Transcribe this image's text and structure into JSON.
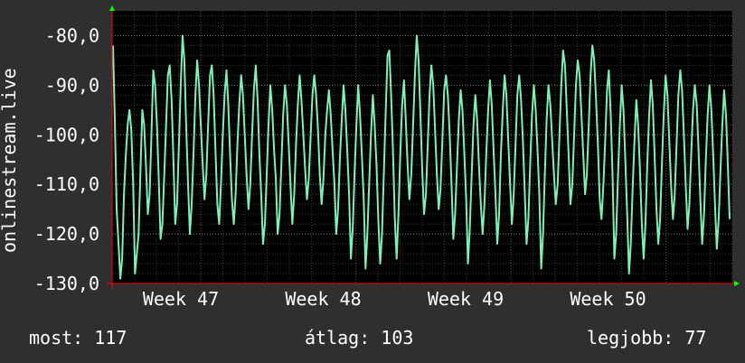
{
  "chart_data": {
    "type": "line",
    "title": "",
    "xlabel": "",
    "ylabel": "onlinestream.live",
    "x_ticks": [
      "Week 47",
      "Week 48",
      "Week 49",
      "Week 50"
    ],
    "y_ticks": [
      "-80,0",
      "-90,0",
      "-100,0",
      "-110,0",
      "-120,0",
      "-130,0"
    ],
    "ylim": [
      -130,
      -75
    ],
    "grid": true,
    "line_color": "#7ef0b8",
    "series": [
      {
        "values": [
          -82,
          -97,
          -115,
          -122,
          -129,
          -125,
          -112,
          -104,
          -98,
          -95,
          -99,
          -110,
          -128,
          -124,
          -120,
          -107,
          -95,
          -98,
          -106,
          -116,
          -112,
          -100,
          -87,
          -90,
          -98,
          -109,
          -121,
          -118,
          -108,
          -98,
          -88,
          -86,
          -93,
          -105,
          -118,
          -114,
          -102,
          -90,
          -80,
          -85,
          -98,
          -110,
          -120,
          -114,
          -104,
          -92,
          -85,
          -90,
          -98,
          -106,
          -113,
          -108,
          -98,
          -88,
          -86,
          -92,
          -103,
          -114,
          -118,
          -110,
          -100,
          -92,
          -87,
          -94,
          -104,
          -113,
          -118,
          -112,
          -102,
          -94,
          -88,
          -92,
          -100,
          -108,
          -115,
          -110,
          -100,
          -91,
          -86,
          -93,
          -104,
          -112,
          -122,
          -118,
          -108,
          -98,
          -90,
          -95,
          -103,
          -109,
          -120,
          -116,
          -106,
          -96,
          -90,
          -94,
          -102,
          -110,
          -118,
          -112,
          -102,
          -94,
          -88,
          -93,
          -100,
          -107,
          -113,
          -109,
          -100,
          -92,
          -88,
          -92,
          -99,
          -108,
          -114,
          -109,
          -100,
          -95,
          -91,
          -96,
          -103,
          -110,
          -120,
          -115,
          -105,
          -97,
          -90,
          -95,
          -103,
          -112,
          -125,
          -119,
          -108,
          -98,
          -90,
          -96,
          -104,
          -113,
          -127,
          -120,
          -110,
          -100,
          -92,
          -98,
          -106,
          -117,
          -126,
          -120,
          -108,
          -96,
          -84,
          -83,
          -92,
          -103,
          -117,
          -125,
          -116,
          -104,
          -94,
          -89,
          -97,
          -106,
          -113,
          -108,
          -98,
          -88,
          -80,
          -85,
          -96,
          -107,
          -116,
          -112,
          -102,
          -92,
          -86,
          -90,
          -99,
          -108,
          -115,
          -111,
          -101,
          -91,
          -88,
          -92,
          -100,
          -110,
          -121,
          -116,
          -106,
          -97,
          -91,
          -95,
          -104,
          -113,
          -126,
          -119,
          -108,
          -98,
          -92,
          -97,
          -106,
          -114,
          -120,
          -114,
          -104,
          -95,
          -89,
          -94,
          -103,
          -112,
          -122,
          -116,
          -104,
          -95,
          -88,
          -92,
          -101,
          -110,
          -118,
          -112,
          -102,
          -92,
          -88,
          -93,
          -101,
          -111,
          -122,
          -117,
          -106,
          -96,
          -90,
          -95,
          -103,
          -112,
          -127,
          -120,
          -108,
          -97,
          -90,
          -94,
          -101,
          -108,
          -114,
          -110,
          -100,
          -90,
          -83,
          -86,
          -95,
          -104,
          -114,
          -110,
          -100,
          -90,
          -85,
          -88,
          -96,
          -104,
          -112,
          -108,
          -98,
          -88,
          -82,
          -85,
          -93,
          -102,
          -113,
          -117,
          -110,
          -101,
          -91,
          -87,
          -96,
          -108,
          -125,
          -120,
          -108,
          -98,
          -90,
          -95,
          -105,
          -116,
          -128,
          -122,
          -111,
          -101,
          -93,
          -98,
          -107,
          -118,
          -125,
          -118,
          -106,
          -96,
          -89,
          -94,
          -104,
          -115,
          -122,
          -117,
          -106,
          -96,
          -88,
          -92,
          -101,
          -110,
          -117,
          -112,
          -102,
          -92,
          -87,
          -91,
          -100,
          -110,
          -119,
          -114,
          -104,
          -95,
          -90,
          -94,
          -103,
          -113,
          -122,
          -116,
          -105,
          -96,
          -90,
          -95,
          -104,
          -114,
          -123,
          -117,
          -107,
          -98,
          -91,
          -96,
          -106,
          -117
        ]
      }
    ],
    "colors": {
      "background": "#2f2f2f",
      "plot_background": "#000000",
      "grid": "#8a8a8a",
      "axis": "#ff0000",
      "line": "#7ef0b8",
      "arrow": "#00ff00"
    }
  },
  "stats": {
    "current_label": "most:",
    "current_value": "117",
    "avg_label": "átlag:",
    "avg_value": "103",
    "best_label": "legjobb:",
    "best_value": "77"
  }
}
